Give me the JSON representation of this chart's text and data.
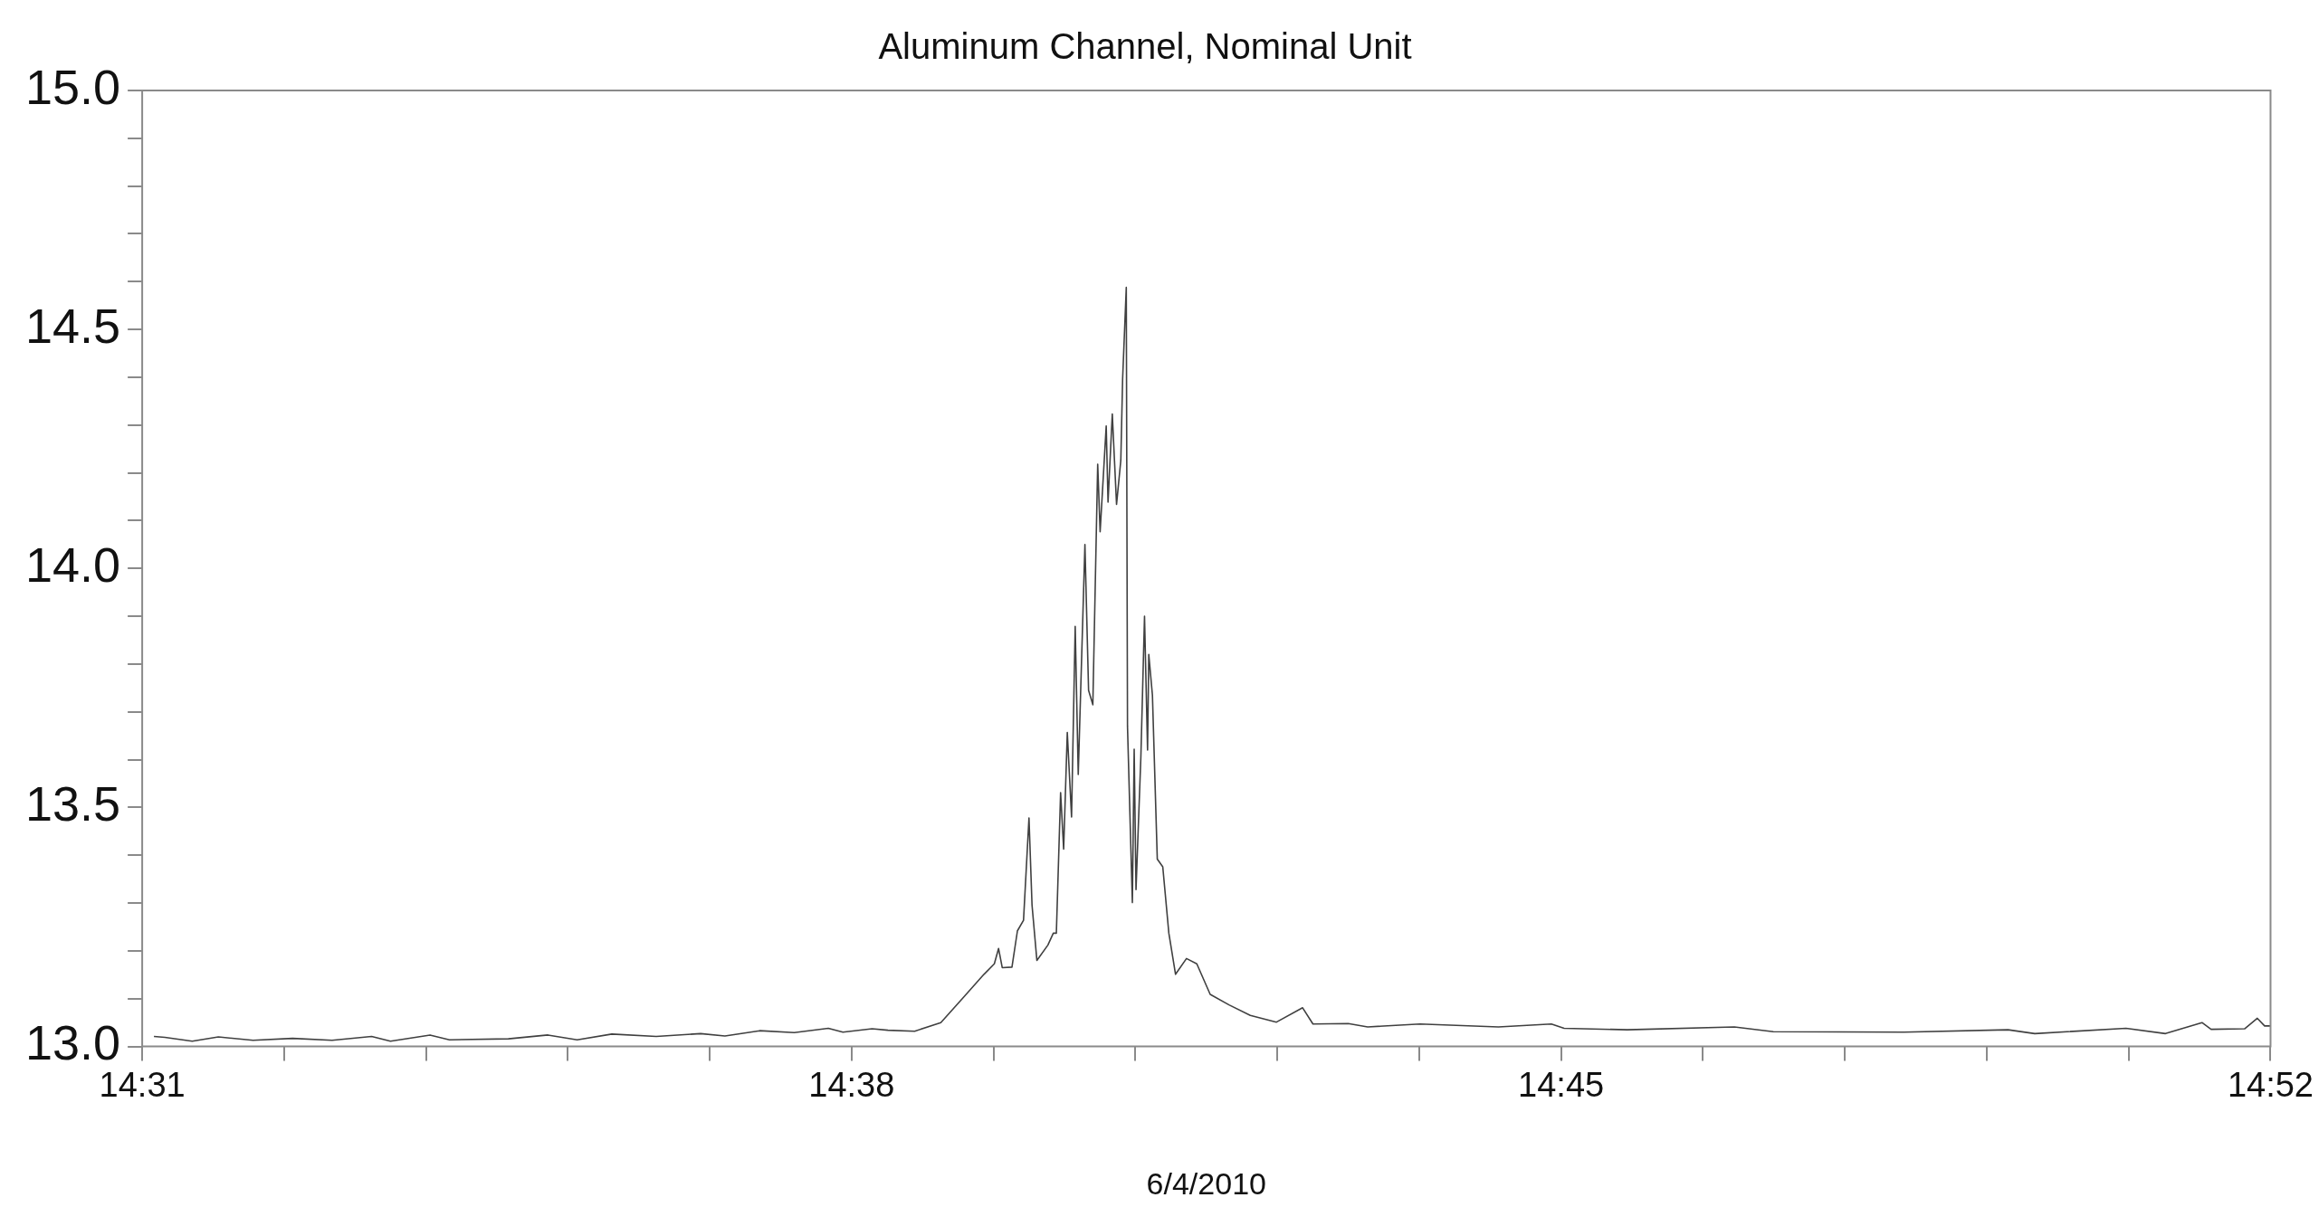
{
  "chart_data": {
    "type": "line",
    "title": "Aluminum Channel, Nominal Unit",
    "xlabel": "6/4/2010",
    "xlim": [
      14.51667,
      14.86667
    ],
    "xticks": [
      {
        "value": 14.51667,
        "label": "14:31"
      },
      {
        "value": 14.54,
        "label": null
      },
      {
        "value": 14.56333,
        "label": null
      },
      {
        "value": 14.58667,
        "label": null
      },
      {
        "value": 14.61,
        "label": null
      },
      {
        "value": 14.63333,
        "label": "14:38"
      },
      {
        "value": 14.65667,
        "label": null
      },
      {
        "value": 14.68,
        "label": null
      },
      {
        "value": 14.70333,
        "label": null
      },
      {
        "value": 14.72667,
        "label": null
      },
      {
        "value": 14.75,
        "label": "14:45"
      },
      {
        "value": 14.77333,
        "label": null
      },
      {
        "value": 14.79667,
        "label": null
      },
      {
        "value": 14.82,
        "label": null
      },
      {
        "value": 14.84333,
        "label": null
      },
      {
        "value": 14.86667,
        "label": "14:52"
      }
    ],
    "ylim": [
      13,
      15
    ],
    "yticks": [
      {
        "value": 13,
        "label": "13.0"
      },
      {
        "value": 13.1,
        "label": null
      },
      {
        "value": 13.2,
        "label": null
      },
      {
        "value": 13.3,
        "label": null
      },
      {
        "value": 13.4,
        "label": null
      },
      {
        "value": 13.5,
        "label": "13.5"
      },
      {
        "value": 13.6,
        "label": null
      },
      {
        "value": 13.7,
        "label": null
      },
      {
        "value": 13.8,
        "label": null
      },
      {
        "value": 13.9,
        "label": null
      },
      {
        "value": 14,
        "label": "14.0"
      },
      {
        "value": 14.1,
        "label": null
      },
      {
        "value": 14.2,
        "label": null
      },
      {
        "value": 14.3,
        "label": null
      },
      {
        "value": 14.4,
        "label": null
      },
      {
        "value": 14.5,
        "label": "14.5"
      },
      {
        "value": 14.6,
        "label": null
      },
      {
        "value": 14.7,
        "label": null
      },
      {
        "value": 14.8,
        "label": null
      },
      {
        "value": 14.9,
        "label": null
      },
      {
        "value": 15,
        "label": "15.0"
      }
    ],
    "series": [
      {
        "color": "#404040",
        "x": [
          14.5186,
          14.5204,
          14.5249,
          14.5292,
          14.5349,
          14.5414,
          14.5479,
          14.5544,
          14.5575,
          14.564,
          14.5672,
          14.5769,
          14.5834,
          14.5882,
          14.5939,
          14.6012,
          14.6085,
          14.6125,
          14.6182,
          14.6239,
          14.6295,
          14.6319,
          14.6367,
          14.6393,
          14.6437,
          14.648,
          14.6516,
          14.6551,
          14.6568,
          14.6575,
          14.6581,
          14.6597,
          14.6606,
          14.6616,
          14.6625,
          14.663,
          14.6638,
          14.6656,
          14.6665,
          14.667,
          14.6677,
          14.6682,
          14.6688,
          14.6695,
          14.6701,
          14.6706,
          14.6717,
          14.6723,
          14.673,
          14.6738,
          14.6742,
          14.6752,
          14.6755,
          14.6762,
          14.6769,
          14.6776,
          14.6779,
          14.6785,
          14.6787,
          14.6795,
          14.6798,
          14.6801,
          14.6809,
          14.6815,
          14.682,
          14.6822,
          14.6828,
          14.6836,
          14.6845,
          14.6855,
          14.6866,
          14.6884,
          14.6901,
          14.6923,
          14.6954,
          14.6989,
          14.7032,
          14.7075,
          14.7092,
          14.715,
          14.7182,
          14.7268,
          14.7397,
          14.7484,
          14.7505,
          14.7609,
          14.7785,
          14.7849,
          14.8064,
          14.8235,
          14.8279,
          14.8429,
          14.8494,
          14.8554,
          14.8569,
          14.8624,
          14.8645,
          14.8657,
          14.86667
        ],
        "values": [
          13.021,
          13.019,
          13.011,
          13.02,
          13.013,
          13.017,
          13.013,
          13.021,
          13.011,
          13.024,
          13.014,
          13.016,
          13.024,
          13.014,
          13.026,
          13.021,
          13.027,
          13.022,
          13.033,
          13.029,
          13.038,
          13.03,
          13.037,
          13.034,
          13.032,
          13.05,
          13.101,
          13.151,
          13.173,
          13.205,
          13.165,
          13.166,
          13.242,
          13.264,
          13.478,
          13.296,
          13.18,
          13.212,
          13.237,
          13.237,
          13.531,
          13.413,
          13.657,
          13.48,
          13.879,
          13.569,
          14.05,
          13.745,
          13.715,
          14.218,
          14.077,
          14.298,
          14.139,
          14.323,
          14.134,
          14.226,
          14.397,
          14.588,
          13.67,
          13.301,
          13.622,
          13.328,
          13.606,
          13.9,
          13.62,
          13.82,
          13.735,
          13.392,
          13.376,
          13.237,
          13.151,
          13.184,
          13.173,
          13.109,
          13.087,
          13.065,
          13.051,
          13.081,
          13.047,
          13.048,
          13.041,
          13.047,
          13.041,
          13.047,
          13.038,
          13.035,
          13.041,
          13.031,
          13.03,
          13.035,
          13.027,
          13.038,
          13.027,
          13.05,
          13.036,
          13.037,
          13.059,
          13.043,
          13.043
        ]
      }
    ]
  }
}
